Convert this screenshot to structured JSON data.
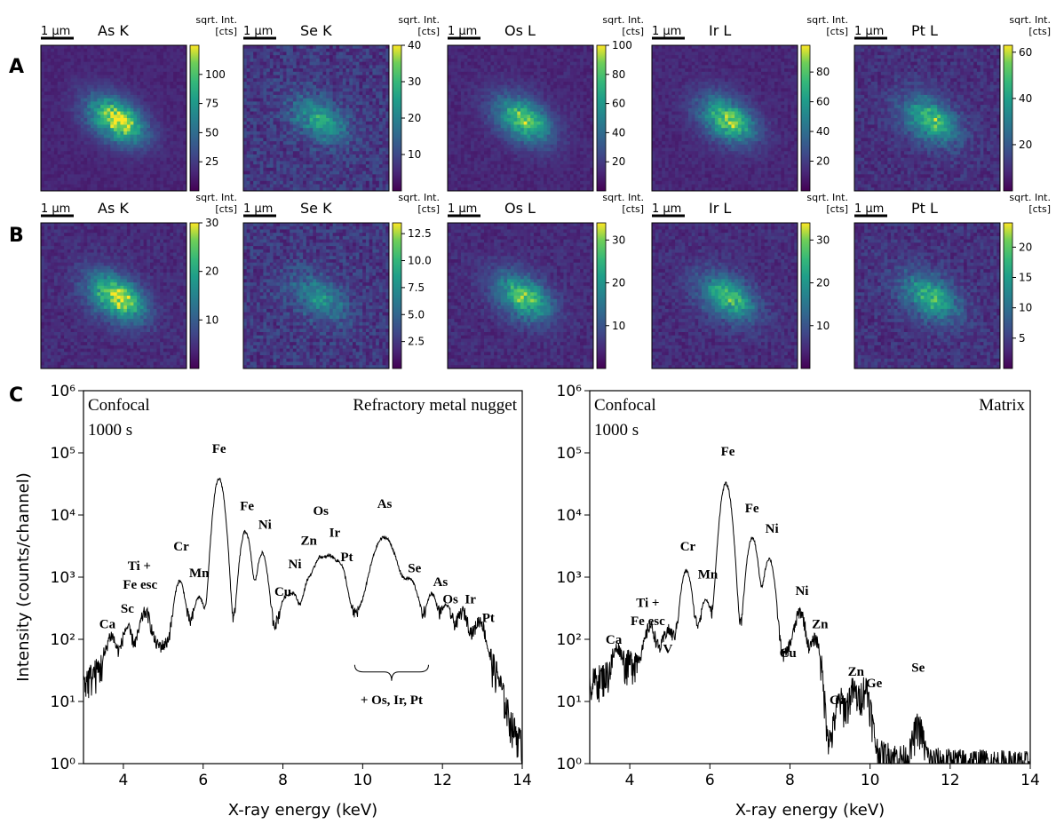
{
  "panel_labels": [
    "A",
    "B",
    "C"
  ],
  "scalebar_label": "1 µm",
  "colorbar_title_line1": "sqrt. Int.",
  "colorbar_title_line2": "[cts]",
  "rows": [
    {
      "label": "A",
      "maps": [
        {
          "element": "As K",
          "cbar_max": 125,
          "ticks": [
            "25",
            "50",
            "75",
            "100"
          ],
          "tick_values": [
            25,
            50,
            75,
            100
          ],
          "blob_intensity": 0.85,
          "noise": 0.12
        },
        {
          "element": "Se K",
          "cbar_max": 40,
          "ticks": [
            "10",
            "20",
            "30",
            "40"
          ],
          "tick_values": [
            10,
            20,
            30,
            40
          ],
          "blob_intensity": 0.45,
          "noise": 0.35
        },
        {
          "element": "Os L",
          "cbar_max": 100,
          "ticks": [
            "20",
            "40",
            "60",
            "80",
            "100"
          ],
          "tick_values": [
            20,
            40,
            60,
            80,
            100
          ],
          "blob_intensity": 0.7,
          "noise": 0.15
        },
        {
          "element": "Ir L",
          "cbar_max": 98,
          "ticks": [
            "20",
            "40",
            "60",
            "80"
          ],
          "tick_values": [
            20,
            40,
            60,
            80
          ],
          "blob_intensity": 0.7,
          "noise": 0.15
        },
        {
          "element": "Pt L",
          "cbar_max": 63,
          "ticks": [
            "20",
            "40",
            "60"
          ],
          "tick_values": [
            20,
            40,
            60
          ],
          "blob_intensity": 0.6,
          "noise": 0.25
        }
      ]
    },
    {
      "label": "B",
      "maps": [
        {
          "element": "As K",
          "cbar_max": 30,
          "ticks": [
            "10",
            "20",
            "30"
          ],
          "tick_values": [
            10,
            20,
            30
          ],
          "blob_intensity": 0.8,
          "noise": 0.2
        },
        {
          "element": "Se K",
          "cbar_max": 13.5,
          "ticks": [
            "2.5",
            "5.0",
            "7.5",
            "10.0",
            "12.5"
          ],
          "tick_values": [
            2.5,
            5,
            7.5,
            10,
            12.5
          ],
          "blob_intensity": 0.35,
          "noise": 0.35
        },
        {
          "element": "Os L",
          "cbar_max": 34,
          "ticks": [
            "10",
            "20",
            "30"
          ],
          "tick_values": [
            10,
            20,
            30
          ],
          "blob_intensity": 0.65,
          "noise": 0.2
        },
        {
          "element": "Ir L",
          "cbar_max": 34,
          "ticks": [
            "10",
            "20",
            "30"
          ],
          "tick_values": [
            10,
            20,
            30
          ],
          "blob_intensity": 0.6,
          "noise": 0.22
        },
        {
          "element": "Pt L",
          "cbar_max": 24,
          "ticks": [
            "5",
            "10",
            "15",
            "20"
          ],
          "tick_values": [
            5,
            10,
            15,
            20
          ],
          "blob_intensity": 0.55,
          "noise": 0.28
        }
      ]
    }
  ],
  "chart_data": [
    {
      "type": "line",
      "panel": "C",
      "xlabel": "X-ray energy (keV)",
      "ylabel": "Intensity (counts/channel)",
      "xlim": [
        3,
        14
      ],
      "ylim": [
        1,
        1000000
      ],
      "yscale": "log",
      "xticks": [
        4,
        6,
        8,
        10,
        12,
        14
      ],
      "yticks": [
        1,
        10,
        100,
        1000,
        10000,
        100000,
        1000000
      ],
      "corner_text": {
        "top_left_line1": "Confocal",
        "top_left_line2": "1000 s",
        "top_right": "Refractory metal nugget"
      },
      "bracket_label": "+ Os, Ir, Pt",
      "baseline_points": [
        [
          3,
          20
        ],
        [
          3.5,
          40
        ],
        [
          4.2,
          70
        ],
        [
          5,
          80
        ],
        [
          5.6,
          150
        ],
        [
          6.2,
          130
        ],
        [
          6.7,
          100
        ],
        [
          7.3,
          120
        ],
        [
          7.8,
          160
        ],
        [
          8.5,
          240
        ],
        [
          9.5,
          230
        ],
        [
          10,
          250
        ],
        [
          11,
          300
        ],
        [
          11.5,
          160
        ],
        [
          12,
          180
        ],
        [
          12.5,
          120
        ],
        [
          13,
          90
        ],
        [
          13.4,
          25
        ],
        [
          13.7,
          5
        ],
        [
          14,
          2
        ]
      ],
      "peaks": [
        {
          "e": 3.69,
          "h": 70,
          "w": 0.09
        },
        {
          "e": 4.09,
          "h": 90,
          "w": 0.09
        },
        {
          "e": 4.55,
          "h": 200,
          "w": 0.11
        },
        {
          "e": 5.41,
          "h": 750,
          "w": 0.1
        },
        {
          "e": 5.9,
          "h": 340,
          "w": 0.1
        },
        {
          "e": 6.4,
          "h": 38000,
          "w": 0.1
        },
        {
          "e": 7.06,
          "h": 5300,
          "w": 0.1
        },
        {
          "e": 7.48,
          "h": 2300,
          "w": 0.1
        },
        {
          "e": 8.05,
          "h": 260,
          "w": 0.1
        },
        {
          "e": 8.26,
          "h": 320,
          "w": 0.1
        },
        {
          "e": 8.64,
          "h": 600,
          "w": 0.1
        },
        {
          "e": 8.91,
          "h": 1700,
          "w": 0.12
        },
        {
          "e": 9.18,
          "h": 1750,
          "w": 0.12
        },
        {
          "e": 9.44,
          "h": 1300,
          "w": 0.12
        },
        {
          "e": 10.54,
          "h": 4100,
          "w": 0.22
        },
        {
          "e": 11.2,
          "h": 650,
          "w": 0.15
        },
        {
          "e": 11.73,
          "h": 380,
          "w": 0.1
        },
        {
          "e": 12.1,
          "h": 190,
          "w": 0.1
        },
        {
          "e": 12.51,
          "h": 160,
          "w": 0.1
        },
        {
          "e": 12.94,
          "h": 110,
          "w": 0.1
        }
      ],
      "annotations": [
        {
          "text": "Ca",
          "x": 3.6,
          "y": 150
        },
        {
          "text": "Sc",
          "x": 4.1,
          "y": 270
        },
        {
          "text": "Ti +",
          "x": 4.4,
          "y": 1300
        },
        {
          "text": "Fe esc",
          "x": 4.42,
          "y": 650
        },
        {
          "text": "Cr",
          "x": 5.45,
          "y": 2700
        },
        {
          "text": "Mn",
          "x": 5.9,
          "y": 1000
        },
        {
          "text": "Fe",
          "x": 6.4,
          "y": 100000
        },
        {
          "text": "Fe",
          "x": 7.1,
          "y": 12000
        },
        {
          "text": "Ni",
          "x": 7.55,
          "y": 6000
        },
        {
          "text": "Cu",
          "x": 8.0,
          "y": 500
        },
        {
          "text": "Ni",
          "x": 8.3,
          "y": 1400
        },
        {
          "text": "Zn",
          "x": 8.65,
          "y": 3300
        },
        {
          "text": "Os",
          "x": 8.95,
          "y": 10000
        },
        {
          "text": "Ir",
          "x": 9.3,
          "y": 4500
        },
        {
          "text": "Pt",
          "x": 9.6,
          "y": 1800
        },
        {
          "text": "As",
          "x": 10.55,
          "y": 13000
        },
        {
          "text": "Se",
          "x": 11.3,
          "y": 1200
        },
        {
          "text": "As",
          "x": 11.95,
          "y": 720
        },
        {
          "text": "Os",
          "x": 12.2,
          "y": 380
        },
        {
          "text": "Ir",
          "x": 12.7,
          "y": 380
        },
        {
          "text": "Pt",
          "x": 13.15,
          "y": 190
        }
      ],
      "bracket": {
        "x_start": 9.8,
        "x_end": 11.65,
        "y": 8
      }
    },
    {
      "type": "line",
      "panel": "C",
      "xlabel": "X-ray energy (keV)",
      "ylabel": "",
      "xlim": [
        3,
        14
      ],
      "ylim": [
        1,
        1000000
      ],
      "yscale": "log",
      "xticks": [
        4,
        6,
        8,
        10,
        12,
        14
      ],
      "yticks": [
        1,
        10,
        100,
        1000,
        10000,
        100000,
        1000000
      ],
      "corner_text": {
        "top_left_line1": "Confocal",
        "top_left_line2": "1000 s",
        "top_right": "Matrix"
      },
      "baseline_points": [
        [
          3,
          20
        ],
        [
          3.5,
          30
        ],
        [
          4.2,
          50
        ],
        [
          4.8,
          60
        ],
        [
          5.5,
          130
        ],
        [
          6.2,
          100
        ],
        [
          6.8,
          90
        ],
        [
          7.4,
          100
        ],
        [
          7.8,
          50
        ],
        [
          8.1,
          40
        ],
        [
          8.5,
          30
        ],
        [
          8.8,
          5
        ],
        [
          9.0,
          2
        ],
        [
          9.4,
          3
        ],
        [
          9.8,
          4
        ],
        [
          10.2,
          1.5
        ],
        [
          11,
          1.2
        ],
        [
          12,
          1.1
        ],
        [
          14,
          1
        ]
      ],
      "peaks": [
        {
          "e": 3.69,
          "h": 40,
          "w": 0.09
        },
        {
          "e": 4.51,
          "h": 110,
          "w": 0.1
        },
        {
          "e": 4.95,
          "h": 70,
          "w": 0.1
        },
        {
          "e": 5.41,
          "h": 1150,
          "w": 0.1
        },
        {
          "e": 5.9,
          "h": 320,
          "w": 0.1
        },
        {
          "e": 6.4,
          "h": 32000,
          "w": 0.1
        },
        {
          "e": 7.06,
          "h": 4200,
          "w": 0.1
        },
        {
          "e": 7.48,
          "h": 1900,
          "w": 0.1
        },
        {
          "e": 8.05,
          "h": 40,
          "w": 0.1
        },
        {
          "e": 8.26,
          "h": 240,
          "w": 0.1
        },
        {
          "e": 8.64,
          "h": 90,
          "w": 0.1
        },
        {
          "e": 9.25,
          "h": 8,
          "w": 0.1
        },
        {
          "e": 9.57,
          "h": 12,
          "w": 0.1
        },
        {
          "e": 9.88,
          "h": 14,
          "w": 0.1
        },
        {
          "e": 11.2,
          "h": 3,
          "w": 0.1
        }
      ],
      "annotations": [
        {
          "text": "Ca",
          "x": 3.6,
          "y": 85
        },
        {
          "text": "Ti +",
          "x": 4.45,
          "y": 330
        },
        {
          "text": "Fe esc",
          "x": 4.45,
          "y": 170
        },
        {
          "text": "V",
          "x": 4.95,
          "y": 60
        },
        {
          "text": "Cr",
          "x": 5.45,
          "y": 2700
        },
        {
          "text": "Mn",
          "x": 5.95,
          "y": 950
        },
        {
          "text": "Fe",
          "x": 6.45,
          "y": 90000
        },
        {
          "text": "Fe",
          "x": 7.05,
          "y": 11000
        },
        {
          "text": "Ni",
          "x": 7.55,
          "y": 5200
        },
        {
          "text": "Ni",
          "x": 8.3,
          "y": 520
        },
        {
          "text": "Cu",
          "x": 7.95,
          "y": 52
        },
        {
          "text": "Zn",
          "x": 8.75,
          "y": 150
        },
        {
          "text": "Ga",
          "x": 9.2,
          "y": 9
        },
        {
          "text": "Zn",
          "x": 9.65,
          "y": 26
        },
        {
          "text": "Ge",
          "x": 10.1,
          "y": 17
        },
        {
          "text": "Se",
          "x": 11.2,
          "y": 30
        }
      ]
    }
  ],
  "colors": {
    "line": "#000000",
    "axis": "#000000"
  }
}
